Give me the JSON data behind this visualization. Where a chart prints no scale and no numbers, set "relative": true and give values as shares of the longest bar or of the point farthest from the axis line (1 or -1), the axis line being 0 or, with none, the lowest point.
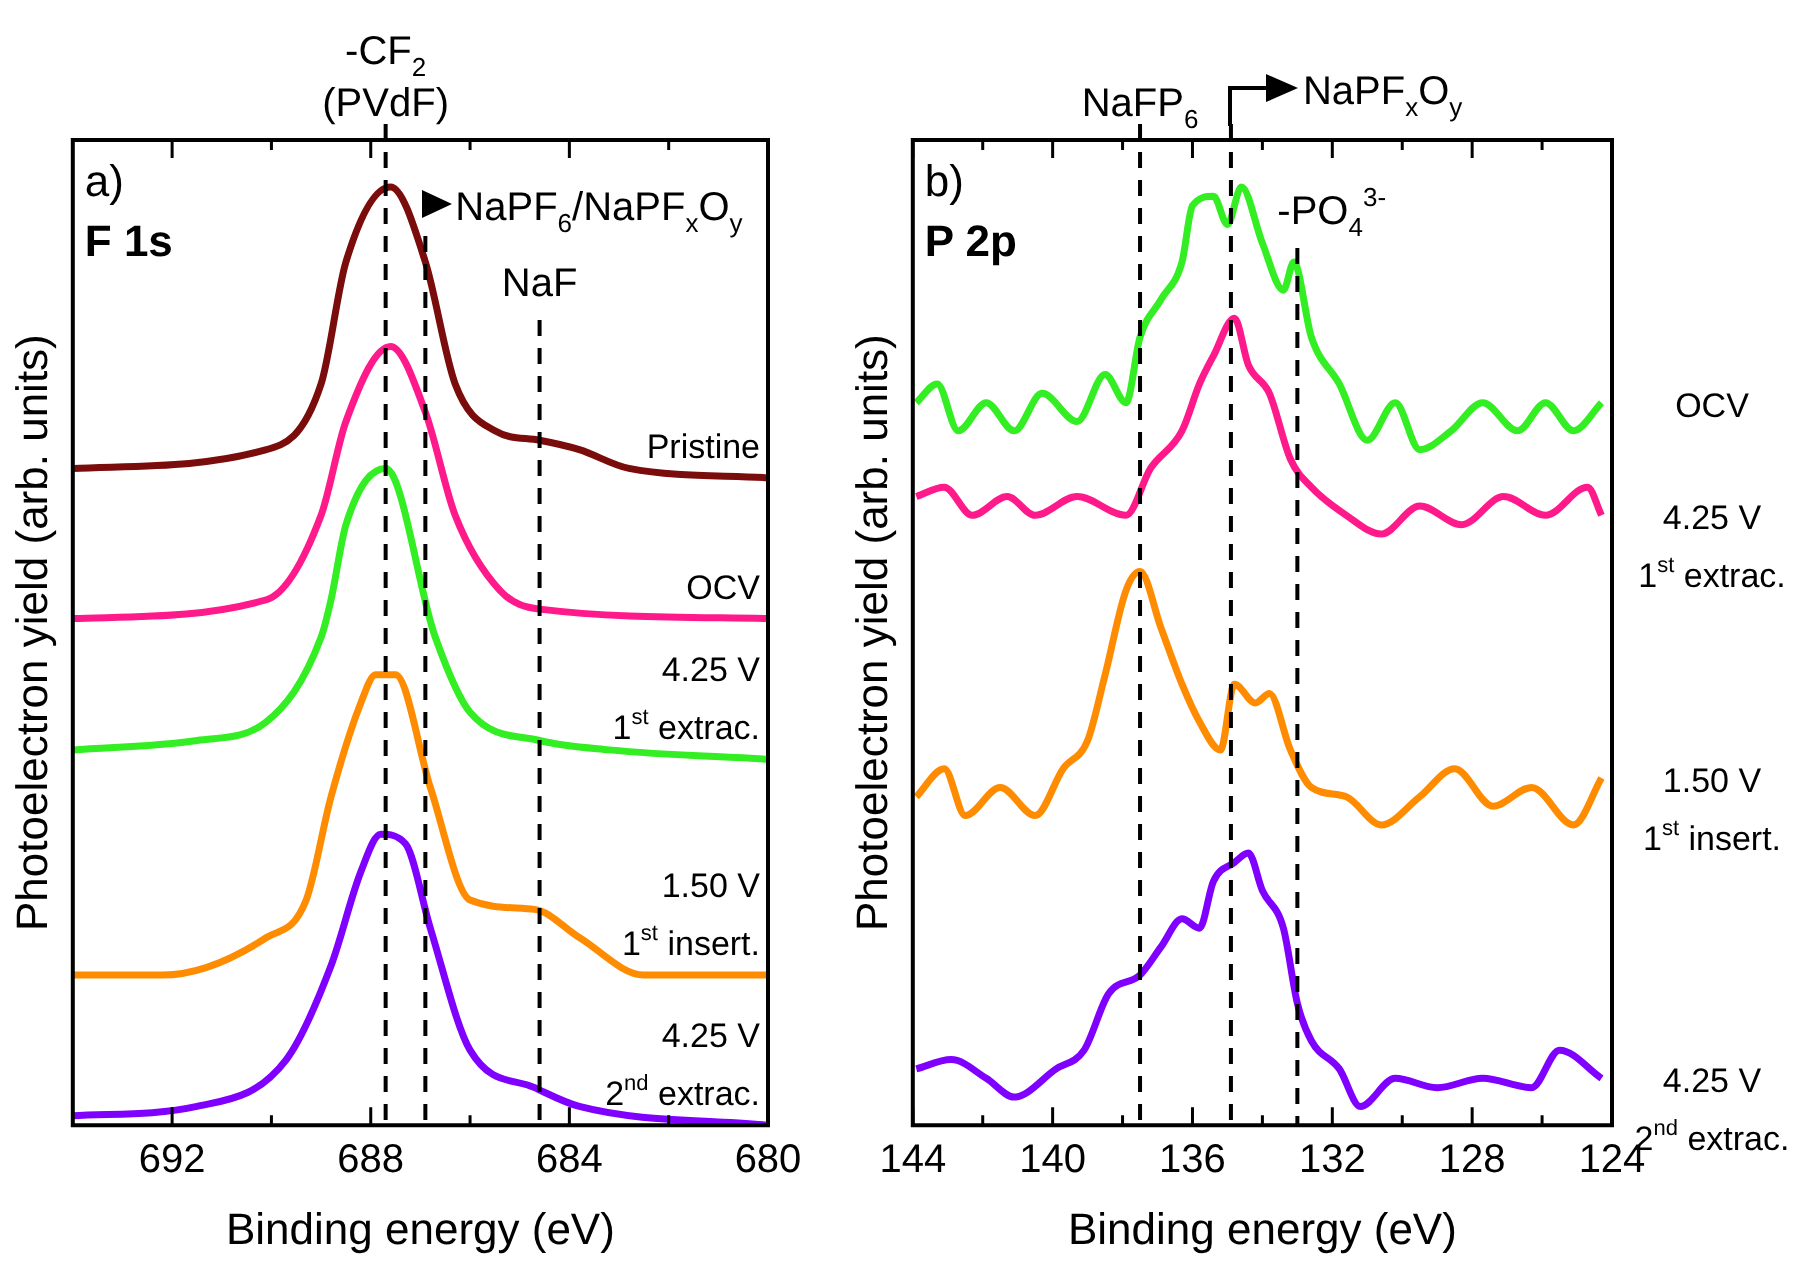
{
  "chart_data": [
    {
      "type": "line",
      "xlabel": "Binding energy (eV)",
      "ylabel": "Photoelectron yield (arb. units)",
      "relative": true,
      "tick_labels": "x",
      "xlim": [
        694,
        680
      ],
      "xticks": [
        692,
        {
          "value": 690,
          "label": null
        },
        688,
        {
          "value": 686,
          "label": null
        },
        684,
        {
          "value": 682,
          "label": null
        },
        680
      ],
      "annotations": [
        "a)",
        "F 1s"
      ],
      "ref_lines": [
        {
          "axis": "x",
          "value": 687.7,
          "label": "-CF$_{2}$\n(PVdF)",
          "line_style": "dashed",
          "color": "#000000"
        },
        {
          "axis": "x",
          "value": 686.9,
          "label": "NaPF$_{6}$/NaPF$_{x}$O$_{y}$",
          "line_style": "dashed",
          "color": "#000000"
        },
        {
          "axis": "x",
          "value": 684.6,
          "label": "NaF",
          "line_style": "dashed",
          "color": "#000000"
        }
      ],
      "series": [
        {
          "name": "Pristine",
          "color": "#7b0c0c",
          "x": [
            694,
            690.1,
            689.0,
            688.5,
            687.6,
            686.9,
            686.3,
            685.5,
            684.6,
            683.8,
            682.8,
            680
          ],
          "values": [
            0.7,
            0.72,
            0.79,
            0.92,
            1.0,
            0.92,
            0.79,
            0.74,
            0.73,
            0.72,
            0.7,
            0.69
          ]
        },
        {
          "name": "OCV",
          "color": "#ff1a8c",
          "x": [
            694,
            690.1,
            689.0,
            688.5,
            687.6,
            686.9,
            686.3,
            685.4,
            684.6,
            680
          ],
          "values": [
            0.54,
            0.56,
            0.65,
            0.75,
            0.83,
            0.76,
            0.65,
            0.57,
            0.55,
            0.54
          ]
        },
        {
          "name": "4.25 V\n1$^{st}$ extrac.",
          "color": "#33ee22",
          "x": [
            694,
            691.5,
            690.1,
            689.0,
            688.8,
            688.5,
            687.7,
            686.7,
            686.0,
            684.6,
            683.2,
            680
          ],
          "values": [
            0.4,
            0.41,
            0.43,
            0.52,
            0.56,
            0.64,
            0.7,
            0.52,
            0.44,
            0.41,
            0.4,
            0.39
          ]
        },
        {
          "name": "1.50 V\n1$^{st}$ insert.",
          "color": "#ff8c00",
          "x": [
            694,
            692.2,
            690.1,
            689.3,
            688.8,
            688.2,
            687.9,
            687.5,
            686.8,
            686.0,
            684.7,
            683.8,
            682.5,
            680
          ],
          "values": [
            0.16,
            0.16,
            0.2,
            0.24,
            0.35,
            0.45,
            0.48,
            0.48,
            0.36,
            0.24,
            0.23,
            0.2,
            0.16,
            0.16
          ]
        },
        {
          "name": "4.25 V\n2$^{nd}$ extrac.",
          "color": "#8000ff",
          "x": [
            694,
            691.5,
            689.7,
            688.8,
            688.2,
            687.8,
            687.3,
            686.8,
            686.0,
            684.7,
            683.8,
            680
          ],
          "values": [
            0.01,
            0.02,
            0.07,
            0.17,
            0.27,
            0.31,
            0.3,
            0.21,
            0.08,
            0.04,
            0.02,
            0.0
          ]
        }
      ]
    },
    {
      "type": "line",
      "xlabel": "Binding energy (eV)",
      "ylabel": "Photoelectron yield (arb. units)",
      "relative": true,
      "tick_labels": "x",
      "xlim": [
        144,
        124
      ],
      "xticks": [
        144,
        {
          "value": 142,
          "label": null
        },
        140,
        {
          "value": 138,
          "label": null
        },
        136,
        {
          "value": 134,
          "label": null
        },
        132,
        {
          "value": 130,
          "label": null
        },
        128,
        {
          "value": 126,
          "label": null
        },
        124
      ],
      "annotations": [
        "b)",
        "P 2p"
      ],
      "ref_lines": [
        {
          "axis": "x",
          "value": 137.5,
          "label": "NaFP$_{6}$",
          "line_style": "dashed",
          "color": "#000000"
        },
        {
          "axis": "x",
          "value": 134.9,
          "label": "NaPF$_{x}$O$_{y}$",
          "line_style": "dashed",
          "color": "#000000"
        },
        {
          "axis": "x",
          "value": 133.0,
          "label": "-PO$_{4}$$^{3-}$",
          "line_style": "dashed",
          "color": "#000000"
        }
      ],
      "series": [
        {
          "name": "OCV",
          "color": "#33ee22",
          "x": [
            143.9,
            143.3,
            142.7,
            141.9,
            141.1,
            140.3,
            139.3,
            138.5,
            137.9,
            137.5,
            136.9,
            136.3,
            136.0,
            135.4,
            135.0,
            134.6,
            134.0,
            133.4,
            133.1,
            132.6,
            131.8,
            131.0,
            130.2,
            129.5,
            128.6,
            127.7,
            126.7,
            125.9,
            125.1,
            124.3
          ],
          "values": [
            0.77,
            0.79,
            0.74,
            0.77,
            0.74,
            0.78,
            0.75,
            0.8,
            0.77,
            0.84,
            0.88,
            0.92,
            0.98,
            0.99,
            0.96,
            1.0,
            0.94,
            0.89,
            0.92,
            0.84,
            0.79,
            0.73,
            0.77,
            0.72,
            0.74,
            0.77,
            0.74,
            0.77,
            0.74,
            0.77
          ]
        },
        {
          "name": "4.25 V\n1$^{st}$ extrac.",
          "color": "#ff1a8c",
          "x": [
            143.9,
            143.1,
            142.3,
            141.3,
            140.5,
            139.3,
            137.9,
            137.2,
            136.3,
            135.8,
            135.4,
            134.8,
            134.4,
            133.8,
            133.2,
            132.6,
            131.6,
            130.6,
            129.5,
            128.3,
            127.1,
            125.9,
            124.7,
            124.3
          ],
          "values": [
            0.67,
            0.68,
            0.65,
            0.67,
            0.65,
            0.67,
            0.65,
            0.7,
            0.74,
            0.79,
            0.82,
            0.86,
            0.81,
            0.78,
            0.71,
            0.68,
            0.65,
            0.63,
            0.66,
            0.64,
            0.67,
            0.65,
            0.68,
            0.65
          ]
        },
        {
          "name": "1.50 V\n1$^{st}$ insert.",
          "color": "#ff8c00",
          "x": [
            143.9,
            143.1,
            142.5,
            141.5,
            140.5,
            139.7,
            139.0,
            138.5,
            137.9,
            137.5,
            136.9,
            136.3,
            135.8,
            135.2,
            134.8,
            134.2,
            133.8,
            133.2,
            132.6,
            131.6,
            130.6,
            129.5,
            128.5,
            127.4,
            126.3,
            125.1,
            124.3
          ],
          "values": [
            0.35,
            0.38,
            0.33,
            0.36,
            0.33,
            0.38,
            0.41,
            0.48,
            0.57,
            0.59,
            0.53,
            0.47,
            0.43,
            0.4,
            0.47,
            0.45,
            0.46,
            0.4,
            0.36,
            0.35,
            0.32,
            0.35,
            0.38,
            0.34,
            0.36,
            0.32,
            0.37
          ]
        },
        {
          "name": "4.25 V\n2$^{nd}$ extrac.",
          "color": "#8000ff",
          "x": [
            143.9,
            142.9,
            141.9,
            141.1,
            139.9,
            139.1,
            138.4,
            137.5,
            136.9,
            136.3,
            135.8,
            135.4,
            134.8,
            134.4,
            134.0,
            133.4,
            133.0,
            132.6,
            131.8,
            131.2,
            130.2,
            129.0,
            127.7,
            126.3,
            125.5,
            124.3
          ],
          "values": [
            0.06,
            0.07,
            0.05,
            0.03,
            0.06,
            0.08,
            0.14,
            0.16,
            0.19,
            0.22,
            0.21,
            0.26,
            0.28,
            0.29,
            0.25,
            0.21,
            0.13,
            0.09,
            0.06,
            0.02,
            0.05,
            0.04,
            0.05,
            0.04,
            0.08,
            0.05
          ]
        }
      ]
    }
  ]
}
